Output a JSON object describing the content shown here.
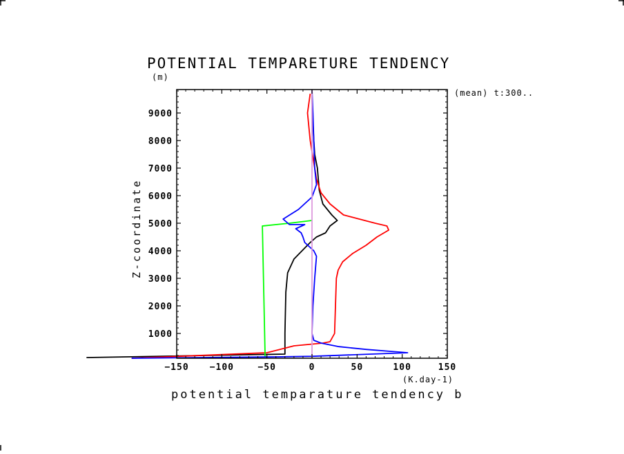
{
  "chart_data": {
    "type": "line",
    "title": "POTENTIAL TEMPARETURE TENDENCY",
    "yunit": "(m)",
    "annotation": "(mean) t:300..",
    "xlabel": "potential temparature tendency b",
    "xunit": "(K.day-1)",
    "ylabel": "Z-coordinate",
    "xlim": [
      -150,
      150
    ],
    "ylim": [
      100,
      9850
    ],
    "xticks": [
      -150,
      -100,
      -50,
      0,
      50,
      100,
      150
    ],
    "yticks": [
      1000,
      2000,
      3000,
      4000,
      5000,
      6000,
      7000,
      8000,
      9000
    ],
    "grid": false,
    "series": [
      {
        "color": "#000000",
        "points": [
          [
            -250,
            125
          ],
          [
            -30,
            250
          ],
          [
            -30,
            1000
          ],
          [
            -29,
            2500
          ],
          [
            -27,
            3200
          ],
          [
            -20,
            3700
          ],
          [
            -8,
            4100
          ],
          [
            -2,
            4300
          ],
          [
            5,
            4500
          ],
          [
            15,
            4650
          ],
          [
            20,
            4900
          ],
          [
            28,
            5100
          ],
          [
            22,
            5300
          ],
          [
            12,
            5700
          ],
          [
            8,
            6200
          ],
          [
            6,
            7000
          ],
          [
            3,
            7500
          ],
          [
            2,
            8000
          ],
          [
            1,
            8700
          ],
          [
            0,
            9500
          ],
          [
            0,
            9800
          ]
        ]
      },
      {
        "color": "#ff0000",
        "points": [
          [
            -200,
            100
          ],
          [
            -50,
            300
          ],
          [
            -20,
            550
          ],
          [
            12,
            650
          ],
          [
            20,
            700
          ],
          [
            25,
            1000
          ],
          [
            26,
            2000
          ],
          [
            27,
            3000
          ],
          [
            29,
            3300
          ],
          [
            34,
            3600
          ],
          [
            45,
            3900
          ],
          [
            60,
            4200
          ],
          [
            72,
            4500
          ],
          [
            85,
            4750
          ],
          [
            83,
            4900
          ],
          [
            70,
            5000
          ],
          [
            35,
            5300
          ],
          [
            20,
            5700
          ],
          [
            10,
            6100
          ],
          [
            5,
            6600
          ],
          [
            2,
            7200
          ],
          [
            -2,
            8000
          ],
          [
            -5,
            9000
          ],
          [
            -2,
            9700
          ]
        ]
      },
      {
        "color": "#00ff00",
        "points": [
          [
            -52,
            125
          ],
          [
            -55,
            4900
          ],
          [
            -25,
            5000
          ],
          [
            0,
            5100
          ]
        ]
      },
      {
        "color": "#0000ff",
        "points": [
          [
            -200,
            100
          ],
          [
            -40,
            150
          ],
          [
            0,
            170
          ],
          [
            106,
            300
          ],
          [
            60,
            420
          ],
          [
            30,
            520
          ],
          [
            10,
            650
          ],
          [
            2,
            750
          ],
          [
            0,
            1000
          ],
          [
            1,
            2000
          ],
          [
            3,
            3000
          ],
          [
            5,
            3800
          ],
          [
            2,
            4000
          ],
          [
            -8,
            4300
          ],
          [
            -10,
            4500
          ],
          [
            -12,
            4650
          ],
          [
            -18,
            4800
          ],
          [
            -8,
            4950
          ],
          [
            -25,
            4950
          ],
          [
            -32,
            5150
          ],
          [
            -15,
            5500
          ],
          [
            0,
            5950
          ],
          [
            5,
            6400
          ],
          [
            3,
            7000
          ],
          [
            2,
            8000
          ],
          [
            1,
            9000
          ],
          [
            0,
            9850
          ]
        ]
      },
      {
        "color": "#dd99dd",
        "points": [
          [
            0,
            100
          ],
          [
            0,
            9850
          ]
        ]
      }
    ]
  }
}
